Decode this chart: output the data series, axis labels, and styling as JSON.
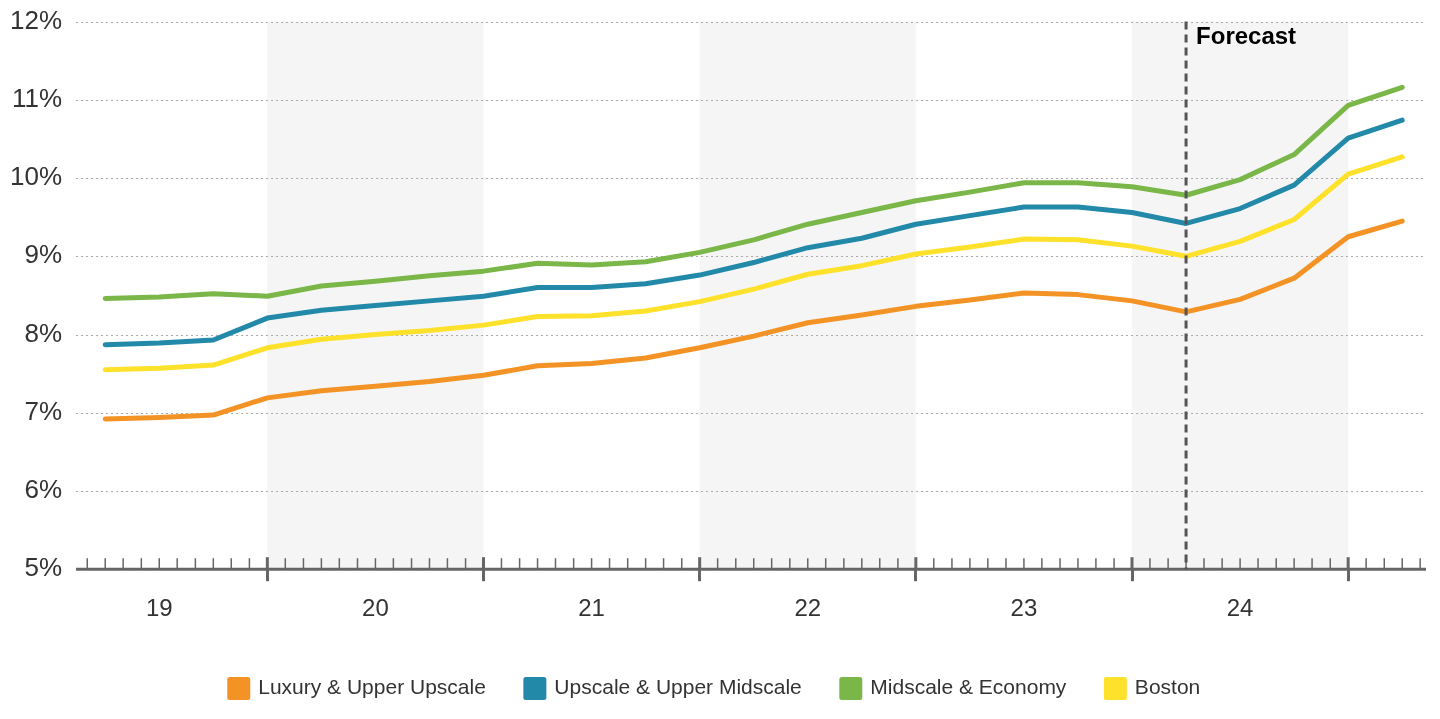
{
  "chart_data": {
    "type": "line",
    "x": [
      18.75,
      19,
      19.25,
      19.5,
      19.75,
      20,
      20.25,
      20.5,
      20.75,
      21,
      21.25,
      21.5,
      21.75,
      22,
      22.25,
      22.5,
      22.75,
      23,
      23.25,
      23.5,
      23.75,
      24,
      24.25,
      24.5,
      24.75
    ],
    "series": [
      {
        "name": "Luxury & Upper Upscale",
        "color": "#f39325",
        "values": [
          6.92,
          6.94,
          6.97,
          7.19,
          7.28,
          7.34,
          7.4,
          7.48,
          7.6,
          7.63,
          7.7,
          7.83,
          7.98,
          8.15,
          8.25,
          8.36,
          8.44,
          8.53,
          8.51,
          8.43,
          8.29,
          8.45,
          8.72,
          9.25,
          9.45
        ]
      },
      {
        "name": "Upscale & Upper Midscale",
        "color": "#2289a8",
        "values": [
          7.87,
          7.89,
          7.93,
          8.21,
          8.31,
          8.37,
          8.43,
          8.49,
          8.6,
          8.6,
          8.65,
          8.76,
          8.92,
          9.11,
          9.23,
          9.41,
          9.52,
          9.63,
          9.63,
          9.56,
          9.42,
          9.61,
          9.91,
          10.51,
          10.74
        ]
      },
      {
        "name": "Midscale & Economy",
        "color": "#7ab648",
        "values": [
          8.46,
          8.48,
          8.52,
          8.49,
          8.62,
          8.68,
          8.75,
          8.81,
          8.91,
          8.89,
          8.93,
          9.05,
          9.21,
          9.41,
          9.56,
          9.71,
          9.82,
          9.94,
          9.94,
          9.89,
          9.78,
          9.98,
          10.3,
          10.93,
          11.16
        ]
      },
      {
        "name": "Boston",
        "color": "#fde12b",
        "values": [
          7.55,
          7.57,
          7.61,
          7.83,
          7.94,
          8,
          8.05,
          8.12,
          8.23,
          8.24,
          8.3,
          8.42,
          8.58,
          8.77,
          8.88,
          9.03,
          9.12,
          9.22,
          9.21,
          9.13,
          9,
          9.19,
          9.47,
          10.05,
          10.27
        ]
      }
    ],
    "xlim": [
      18.615,
      24.86
    ],
    "xticks": [
      {
        "value": 18.667,
        "label": null
      },
      {
        "value": 18.75,
        "label": null
      },
      {
        "value": 18.833,
        "label": null
      },
      {
        "value": 18.917,
        "label": null
      },
      19,
      {
        "value": 19.083,
        "label": null
      },
      {
        "value": 19.167,
        "label": null
      },
      {
        "value": 19.25,
        "label": null
      },
      {
        "value": 19.333,
        "label": null
      },
      {
        "value": 19.417,
        "label": null
      },
      {
        "value": 19.5,
        "label": null
      },
      {
        "value": 19.583,
        "label": null
      },
      {
        "value": 19.667,
        "label": null
      },
      {
        "value": 19.75,
        "label": null
      },
      {
        "value": 19.833,
        "label": null
      },
      {
        "value": 19.917,
        "label": null
      },
      20,
      {
        "value": 20.083,
        "label": null
      },
      {
        "value": 20.167,
        "label": null
      },
      {
        "value": 20.25,
        "label": null
      },
      {
        "value": 20.333,
        "label": null
      },
      {
        "value": 20.417,
        "label": null
      },
      {
        "value": 20.5,
        "label": null
      },
      {
        "value": 20.583,
        "label": null
      },
      {
        "value": 20.667,
        "label": null
      },
      {
        "value": 20.75,
        "label": null
      },
      {
        "value": 20.833,
        "label": null
      },
      {
        "value": 20.917,
        "label": null
      },
      21,
      {
        "value": 21.083,
        "label": null
      },
      {
        "value": 21.167,
        "label": null
      },
      {
        "value": 21.25,
        "label": null
      },
      {
        "value": 21.333,
        "label": null
      },
      {
        "value": 21.417,
        "label": null
      },
      {
        "value": 21.5,
        "label": null
      },
      {
        "value": 21.583,
        "label": null
      },
      {
        "value": 21.667,
        "label": null
      },
      {
        "value": 21.75,
        "label": null
      },
      {
        "value": 21.833,
        "label": null
      },
      {
        "value": 21.917,
        "label": null
      },
      22,
      {
        "value": 22.083,
        "label": null
      },
      {
        "value": 22.167,
        "label": null
      },
      {
        "value": 22.25,
        "label": null
      },
      {
        "value": 22.333,
        "label": null
      },
      {
        "value": 22.417,
        "label": null
      },
      {
        "value": 22.5,
        "label": null
      },
      {
        "value": 22.583,
        "label": null
      },
      {
        "value": 22.667,
        "label": null
      },
      {
        "value": 22.75,
        "label": null
      },
      {
        "value": 22.833,
        "label": null
      },
      {
        "value": 22.917,
        "label": null
      },
      23,
      {
        "value": 23.083,
        "label": null
      },
      {
        "value": 23.167,
        "label": null
      },
      {
        "value": 23.25,
        "label": null
      },
      {
        "value": 23.333,
        "label": null
      },
      {
        "value": 23.417,
        "label": null
      },
      {
        "value": 23.5,
        "label": null
      },
      {
        "value": 23.583,
        "label": null
      },
      {
        "value": 23.667,
        "label": null
      },
      {
        "value": 23.75,
        "label": null
      },
      {
        "value": 23.833,
        "label": null
      },
      {
        "value": 23.917,
        "label": null
      },
      24,
      {
        "value": 24.083,
        "label": null
      },
      {
        "value": 24.167,
        "label": null
      },
      {
        "value": 24.25,
        "label": null
      },
      {
        "value": 24.333,
        "label": null
      },
      {
        "value": 24.417,
        "label": null
      },
      {
        "value": 24.5,
        "label": null
      },
      {
        "value": 24.583,
        "label": null
      },
      {
        "value": 24.667,
        "label": null
      },
      {
        "value": 24.75,
        "label": null
      },
      {
        "value": 24.833,
        "label": null
      }
    ],
    "ylim": [
      5,
      12
    ],
    "yticks": [
      {
        "value": 5,
        "label": "5%"
      },
      {
        "value": 6,
        "label": "6%"
      },
      {
        "value": 7,
        "label": "7%"
      },
      {
        "value": 8,
        "label": "8%"
      },
      {
        "value": 9,
        "label": "9%"
      },
      {
        "value": 10,
        "label": "10%"
      },
      {
        "value": 11,
        "label": "11%"
      },
      {
        "value": 12,
        "label": "12%"
      }
    ],
    "grid": "y",
    "legend": "bottom",
    "marker": "none",
    "line_style": "solid",
    "bands": [
      {
        "axis": "x",
        "from": 19.5,
        "to": 20.5,
        "color": "#f5f5f5"
      },
      {
        "axis": "x",
        "from": 21.5,
        "to": 22.5,
        "color": "#f5f5f5"
      },
      {
        "axis": "x",
        "from": 23.5,
        "to": 24.5,
        "color": "#f5f5f5"
      }
    ],
    "ref_lines": [
      {
        "axis": "x",
        "value": 23.75,
        "label": "Forecast",
        "color": "#555555",
        "line_style": "dashed"
      }
    ]
  }
}
